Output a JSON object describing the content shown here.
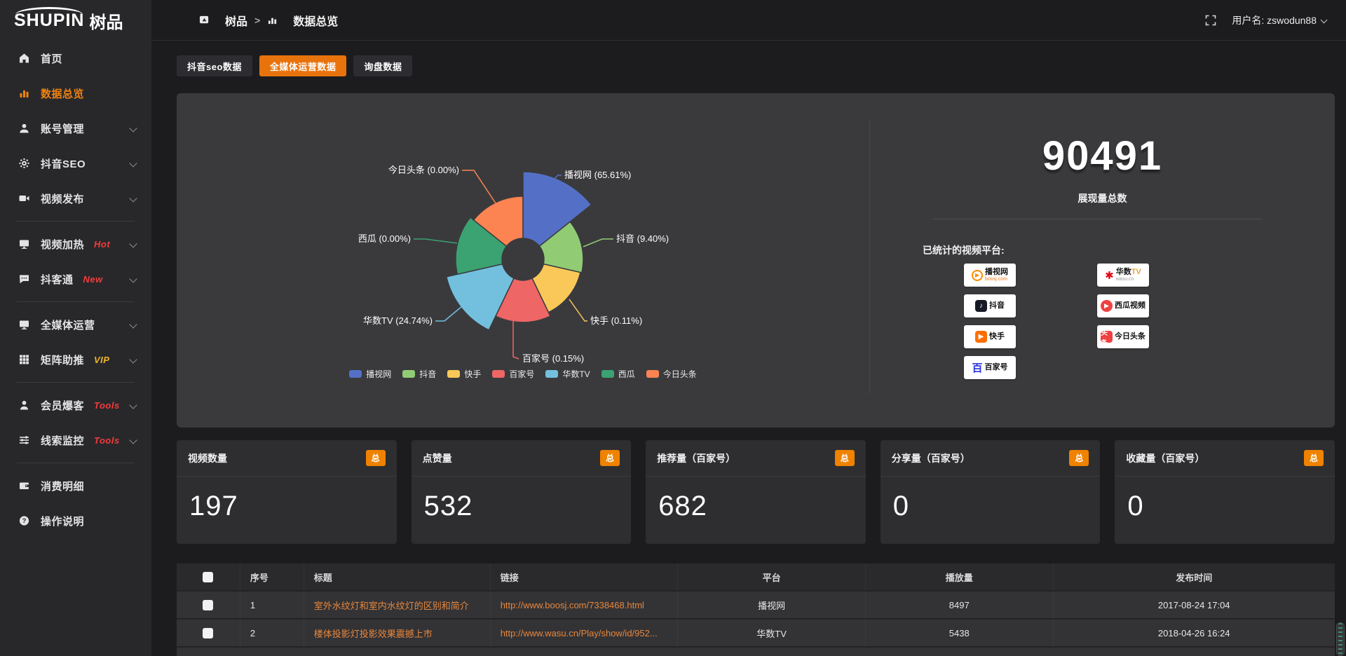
{
  "app": {
    "logo_main": "SHUPIN",
    "logo_suffix": "树品"
  },
  "topbar": {
    "breadcrumb": [
      "树品",
      "数据总览"
    ],
    "breadcrumb_sep": ">",
    "username": "用户名: zswodun88"
  },
  "sidebar": {
    "items": [
      {
        "key": "home",
        "label": "首页",
        "icon": "home"
      },
      {
        "key": "data-overview",
        "label": "数据总览",
        "icon": "chart",
        "active": true
      },
      {
        "key": "account-management",
        "label": "账号管理",
        "icon": "user",
        "chevron": true
      },
      {
        "key": "douyin-seo",
        "label": "抖音SEO",
        "icon": "gear",
        "chevron": true
      },
      {
        "key": "video-publish",
        "label": "视频发布",
        "icon": "video",
        "chevron": true
      },
      {
        "divider": true
      },
      {
        "key": "video-heating",
        "label": "视频加热",
        "icon": "screen",
        "badge": "Hot",
        "badge_color": "red",
        "chevron": true
      },
      {
        "key": "douketong",
        "label": "抖客通",
        "icon": "chat",
        "badge": "New",
        "badge_color": "red",
        "chevron": true
      },
      {
        "divider": true
      },
      {
        "key": "media-operation",
        "label": "全媒体运营",
        "icon": "monitor",
        "chevron": true
      },
      {
        "key": "matrix-boost",
        "label": "矩阵助推",
        "icon": "grid",
        "badge": "VIP",
        "badge_color": "gold",
        "chevron": true
      },
      {
        "divider": true
      },
      {
        "key": "member-burst",
        "label": "会员爆客",
        "icon": "person",
        "badge": "Tools",
        "badge_color": "red",
        "chevron": true
      },
      {
        "key": "clue-monitor",
        "label": "线索监控",
        "icon": "sliders",
        "badge": "Tools",
        "badge_color": "red",
        "chevron": true
      },
      {
        "divider": true
      },
      {
        "key": "consumption-detail",
        "label": "消费明细",
        "icon": "wallet"
      },
      {
        "key": "operation-guide",
        "label": "操作说明",
        "icon": "help"
      }
    ]
  },
  "tabs": [
    {
      "key": "douyin-seo-data",
      "label": "抖音seo数据",
      "active": false
    },
    {
      "key": "media-operation-data",
      "label": "全媒体运营数据",
      "active": true
    },
    {
      "key": "inquiry-data",
      "label": "询盘数据",
      "active": false
    }
  ],
  "chart_data": {
    "type": "pie",
    "subtype": "nightingale-rose",
    "legend_position": "bottom",
    "inner_radius_px": 30,
    "items": [
      {
        "name": "播视网",
        "percent": 65.61,
        "color": "#5470c6",
        "radius_px": 125
      },
      {
        "name": "抖音",
        "percent": 9.4,
        "color": "#91cc75",
        "radius_px": 86
      },
      {
        "name": "快手",
        "percent": 0.11,
        "color": "#fac858",
        "radius_px": 84
      },
      {
        "name": "百家号",
        "percent": 0.15,
        "color": "#ee6666",
        "radius_px": 90
      },
      {
        "name": "华数TV",
        "percent": 24.74,
        "color": "#73c0de",
        "radius_px": 112
      },
      {
        "name": "西瓜",
        "percent": 0.0,
        "color": "#3ba272",
        "radius_px": 96
      },
      {
        "name": "今日头条",
        "percent": 0.0,
        "color": "#fc8452",
        "radius_px": 90
      }
    ]
  },
  "summary": {
    "total_value": "90491",
    "total_label": "展现量总数",
    "platforms_label": "已统计的视频平台:",
    "platforms": [
      {
        "name": "播视网",
        "sub": "boosj.com",
        "logo": {
          "shape": "circle-outline",
          "color": "#ff8a00",
          "glyph": "▶"
        }
      },
      {
        "name": "抖音",
        "logo": {
          "shape": "box",
          "color": "#161823",
          "glyph": "♪"
        }
      },
      {
        "name": "快手",
        "logo": {
          "shape": "box",
          "color": "#ff6f00",
          "glyph": "▶"
        }
      },
      {
        "name": "百家号",
        "logo": {
          "shape": "plain",
          "color": "#2932e1",
          "glyph": "百"
        }
      },
      {
        "name": "华数",
        "suffix": "TV",
        "suffix_color": "#e8a33d",
        "sub": "wasu.cn",
        "sub_gray": true,
        "logo": {
          "shape": "plain",
          "color": "#e60012",
          "glyph": "✱"
        }
      },
      {
        "name": "西瓜视频",
        "logo": {
          "shape": "circle",
          "color": "#f04142",
          "glyph": "▶"
        }
      },
      {
        "name": "今日头条",
        "logo": {
          "shape": "box",
          "color": "#f04142",
          "glyph": "头条"
        }
      }
    ]
  },
  "stat_cards": [
    {
      "title": "视频数量",
      "badge": "总",
      "value": "197"
    },
    {
      "title": "点赞量",
      "badge": "总",
      "value": "532"
    },
    {
      "title": "推荐量（百家号）",
      "badge": "总",
      "value": "682"
    },
    {
      "title": "分享量（百家号）",
      "badge": "总",
      "value": "0"
    },
    {
      "title": "收藏量（百家号）",
      "badge": "总",
      "value": "0"
    }
  ],
  "table": {
    "headers": [
      "序号",
      "标题",
      "链接",
      "平台",
      "播放量",
      "发布时间"
    ],
    "rows": [
      {
        "num": "1",
        "title": "室外水纹灯和室内水纹灯的区别和简介",
        "link": "http://www.boosj.com/7338468.html",
        "platform": "播视网",
        "plays": "8497",
        "time": "2017-08-24 17:04"
      },
      {
        "num": "2",
        "title": "楼体投影灯投影效果震撼上市",
        "link": "http://www.wasu.cn/Play/show/id/952...",
        "platform": "华数TV",
        "plays": "5438",
        "time": "2018-04-26 16:24"
      }
    ]
  }
}
